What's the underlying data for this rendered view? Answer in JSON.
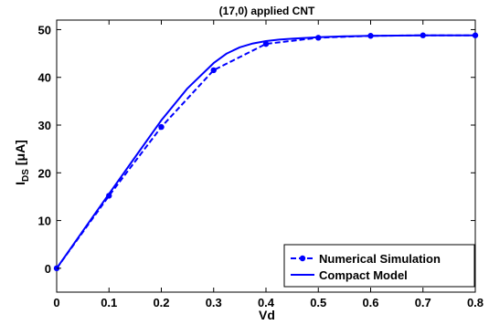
{
  "chart_data": {
    "type": "line",
    "title": "(17,0) applied CNT",
    "xlabel": "Vd",
    "ylabel": "I_DS [μA]",
    "ylabel_main": "I",
    "ylabel_sub": "DS",
    "ylabel_unit": " [μA]",
    "xlim": [
      0,
      0.8
    ],
    "ylim": [
      -5,
      52
    ],
    "xticks": [
      0,
      0.1,
      0.2,
      0.3,
      0.4,
      0.5,
      0.6,
      0.7,
      0.8
    ],
    "xtick_labels": [
      "0",
      "0.1",
      "0.2",
      "0.3",
      "0.4",
      "0.5",
      "0.6",
      "0.7",
      "0.8"
    ],
    "yticks": [
      0,
      10,
      20,
      30,
      40,
      50
    ],
    "ytick_labels": [
      "0",
      "10",
      "20",
      "30",
      "40",
      "50"
    ],
    "grid": false,
    "legend_position": "bottom-right",
    "series": [
      {
        "name": "Numerical Simulation",
        "style": "dashed-marker",
        "color": "#0000ff",
        "x": [
          0,
          0.1,
          0.2,
          0.3,
          0.4,
          0.5,
          0.6,
          0.7,
          0.8
        ],
        "y": [
          0,
          15.2,
          29.6,
          41.5,
          47.0,
          48.3,
          48.7,
          48.8,
          48.8
        ]
      },
      {
        "name": "Compact Model",
        "style": "solid",
        "color": "#0000ff",
        "x": [
          0,
          0.05,
          0.1,
          0.15,
          0.2,
          0.25,
          0.3,
          0.325,
          0.35,
          0.375,
          0.4,
          0.425,
          0.45,
          0.5,
          0.55,
          0.6,
          0.7,
          0.8
        ],
        "y": [
          0,
          7.8,
          15.6,
          23.3,
          31.0,
          37.7,
          43.0,
          45.0,
          46.3,
          47.1,
          47.6,
          47.9,
          48.1,
          48.4,
          48.6,
          48.7,
          48.8,
          48.8
        ]
      }
    ]
  }
}
